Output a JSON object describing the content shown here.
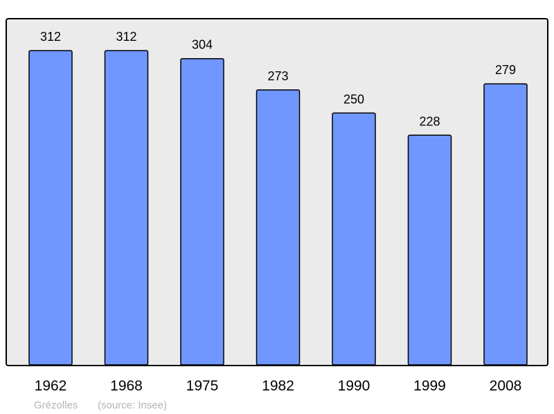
{
  "chart_data": {
    "type": "bar",
    "categories": [
      "1962",
      "1968",
      "1975",
      "1982",
      "1990",
      "1999",
      "2008"
    ],
    "values": [
      312,
      312,
      304,
      273,
      250,
      228,
      279
    ],
    "ylim": [
      0,
      343
    ],
    "grid": false,
    "bar_color": "#7097ff",
    "background_color": "#ebebeb",
    "footer": {
      "place": "Grézolles",
      "source": "(source: Insee)"
    }
  }
}
